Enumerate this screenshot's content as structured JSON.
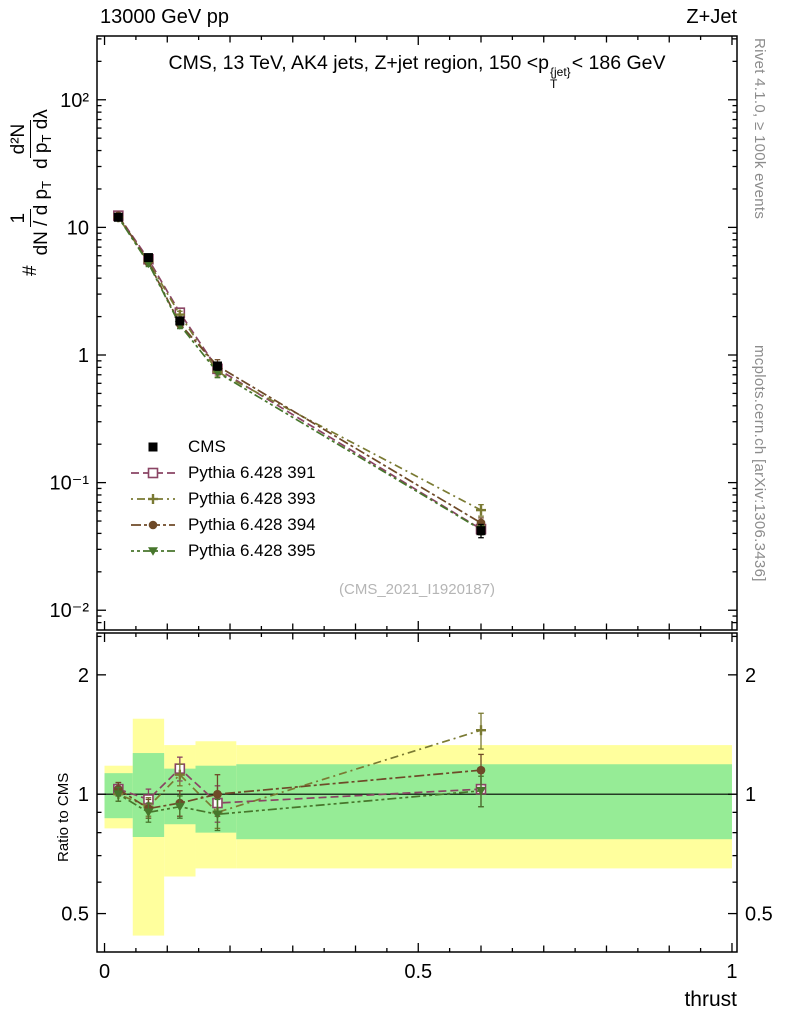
{
  "header": {
    "left": "13000 GeV pp",
    "right": "Z+Jet"
  },
  "title": {
    "a": "CMS, 13 TeV, AK4 jets, Z+jet region, 150 <p",
    "sup": "{jet}",
    "sub": "T",
    "b": "< 186 GeV"
  },
  "ylabel_main": {
    "prefix": "#",
    "f1_num": "1",
    "f1_den": "dN / d p",
    "f1_den_sub": "T",
    "f2_num": "d²N",
    "f2_den_a": "d p",
    "f2_den_sub": "T",
    "f2_den_b": " dλ"
  },
  "ylabel_ratio": "Ratio to CMS",
  "xlabel": "thrust",
  "watermark": "(CMS_2021_I1920187)",
  "side_notes": {
    "top_right": "Rivet 4.1.0, ≥ 100k events",
    "bottom_right": "mcplots.cern.ch [arXiv:1306.3436]"
  },
  "chart_data": {
    "type": "line",
    "title": "CMS, 13 TeV, AK4 jets, Z+jet region, 150 < pT{jet} < 186 GeV",
    "xlabel": "thrust",
    "ylabel": "# (1 / dN/dpT) d²N/(dpT dλ)",
    "ratio_ylabel": "Ratio to CMS",
    "x_range": [
      -0.012,
      1.008
    ],
    "x_ticks": [
      {
        "v": 0,
        "label": "0"
      },
      {
        "v": 0.5,
        "label": "0.5"
      },
      {
        "v": 1,
        "label": "1"
      }
    ],
    "main_panel": {
      "y_scale": "log",
      "y_log_range": [
        0.007,
        316
      ],
      "y_ticks": [
        {
          "v": 100,
          "label": "10²"
        },
        {
          "v": 10,
          "label": "10"
        },
        {
          "v": 1,
          "label": "1"
        },
        {
          "v": 0.1,
          "label": "10⁻¹"
        },
        {
          "v": 0.01,
          "label": "10⁻²"
        }
      ]
    },
    "ratio_panel": {
      "y_scale": "log",
      "y_log_range": [
        0.4,
        2.55
      ],
      "reference_y": 1,
      "y_ticks": [
        {
          "v": 2,
          "label": "2"
        },
        {
          "v": 1,
          "label": "1"
        },
        {
          "v": 0.5,
          "label": "0.5"
        }
      ],
      "y_minor_ticks": [
        0.6,
        0.7,
        0.8,
        0.9,
        2.5
      ]
    },
    "bands": {
      "yellow_color": "#ffff9d",
      "green_color": "#96ec96",
      "segments": [
        {
          "x0": 0.0,
          "x1": 0.045,
          "green": [
            0.87,
            1.13
          ],
          "yellow": [
            0.82,
            1.18
          ]
        },
        {
          "x0": 0.045,
          "x1": 0.095,
          "green": [
            0.78,
            1.27
          ],
          "yellow": [
            0.44,
            1.55
          ]
        },
        {
          "x0": 0.095,
          "x1": 0.145,
          "green": [
            0.84,
            1.16
          ],
          "yellow": [
            0.62,
            1.33
          ]
        },
        {
          "x0": 0.145,
          "x1": 0.21,
          "green": [
            0.8,
            1.18
          ],
          "yellow": [
            0.65,
            1.36
          ]
        },
        {
          "x0": 0.21,
          "x1": 1.0,
          "green": [
            0.77,
            1.19
          ],
          "yellow": [
            0.65,
            1.33
          ]
        }
      ]
    },
    "x": [
      0.022,
      0.07,
      0.12,
      0.18,
      0.6
    ],
    "cms": {
      "name": "CMS",
      "color": "#000000",
      "marker": "square-filled",
      "y": [
        12.0,
        5.8,
        1.85,
        0.82,
        0.042
      ],
      "yerr": [
        0.5,
        0.35,
        0.12,
        0.06,
        0.005
      ]
    },
    "series": [
      {
        "name": "Pythia 6.428 391",
        "color": "#8a4464",
        "marker": "square-open",
        "dash": "8 4",
        "ratio": [
          1.03,
          0.97,
          1.16,
          0.95,
          1.03
        ],
        "ratio_err": [
          0.04,
          0.06,
          0.08,
          0.1,
          0.1
        ]
      },
      {
        "name": "Pythia 6.428 393",
        "color": "#7a7a33",
        "marker": "plus-open",
        "dash": "2 4 8 4",
        "ratio": [
          1.0,
          0.93,
          1.12,
          0.9,
          1.45
        ],
        "ratio_err": [
          0.04,
          0.05,
          0.07,
          0.08,
          0.15
        ]
      },
      {
        "name": "Pythia 6.428 394",
        "color": "#6e4a28",
        "marker": "circle-filled",
        "dash": "10 3 3 3",
        "ratio": [
          1.03,
          0.92,
          0.95,
          1.0,
          1.15
        ],
        "ratio_err": [
          0.04,
          0.05,
          0.07,
          0.12,
          0.11
        ]
      },
      {
        "name": "Pythia 6.428 395",
        "color": "#47762c",
        "marker": "triangle-down-filled",
        "dash": "3 3 3 3 9 3",
        "ratio": [
          1.0,
          0.9,
          0.93,
          0.89,
          1.02
        ],
        "ratio_err": [
          0.04,
          0.05,
          0.06,
          0.08,
          0.09
        ]
      }
    ]
  }
}
